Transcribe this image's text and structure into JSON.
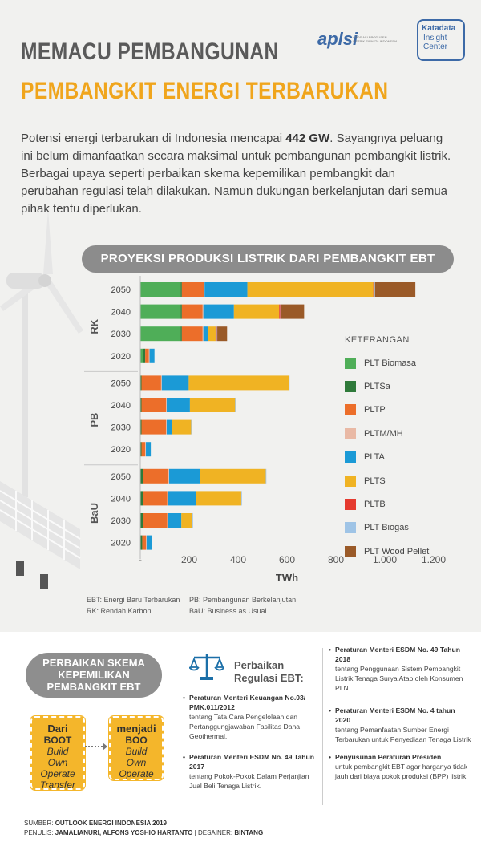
{
  "header": {
    "title_line1": "MEMACU PEMBANGUNAN",
    "title_line2": "PEMBANGKIT ENERGI TERBARUKAN",
    "logo_aplsi": "aplsi",
    "logo_aplsi_small": "ASOSIASI PRODUSEN LISTRIK SWASTA INDONESIA",
    "logo_kd_line1": "Katadata",
    "logo_kd_line2": "Insight",
    "logo_kd_line3": "Center"
  },
  "intro": {
    "part1": "Potensi energi terbarukan di Indonesia mencapai ",
    "bold": "442 GW",
    "part2": ". Sayangnya peluang ini belum dimanfaatkan secara maksimal untuk pembangunan pembangkit listrik. Berbagai upaya seperti perbaikan skema kepemilikan pembangkit dan perubahan regulasi telah dilakukan. Namun dukungan berkelanjutan dari semua pihak tentu diperlukan."
  },
  "chart_data": {
    "type": "bar",
    "orientation": "horizontal",
    "stacked": true,
    "title": "PROYEKSI PRODUKSI LISTRIK DARI PEMBANGKIT EBT",
    "xlabel": "TWh",
    "xlim": [
      0,
      1200
    ],
    "xticks": [
      "-",
      "200",
      "400",
      "600",
      "800",
      "1.000",
      "1.200"
    ],
    "legend_title": "KETERANGAN",
    "legend_position": "right",
    "groups": [
      {
        "name": "RK",
        "categories": [
          "2050",
          "2040",
          "2030",
          "2020"
        ]
      },
      {
        "name": "PB",
        "categories": [
          "2050",
          "2040",
          "2030",
          "2020"
        ]
      },
      {
        "name": "BaU",
        "categories": [
          "2050",
          "2040",
          "2030",
          "2020"
        ]
      }
    ],
    "series": [
      {
        "name": "PLT Biomasa",
        "color": "#4fae58",
        "values": [
          [
            165,
            165,
            165,
            12
          ],
          [
            0,
            0,
            0,
            0
          ],
          [
            0,
            0,
            0,
            0
          ]
        ]
      },
      {
        "name": "PLTSa",
        "color": "#2f7a3a",
        "values": [
          [
            5,
            5,
            5,
            8
          ],
          [
            5,
            5,
            5,
            5
          ],
          [
            10,
            10,
            10,
            8
          ]
        ]
      },
      {
        "name": "PLTP",
        "color": "#ec6e2a",
        "values": [
          [
            90,
            85,
            85,
            15
          ],
          [
            80,
            100,
            100,
            15
          ],
          [
            105,
            100,
            100,
            15
          ]
        ]
      },
      {
        "name": "PLTM/MH",
        "color": "#e9b9a5",
        "values": [
          [
            3,
            3,
            3,
            3
          ],
          [
            3,
            3,
            3,
            3
          ],
          [
            3,
            3,
            3,
            3
          ]
        ]
      },
      {
        "name": "PLTA",
        "color": "#1b9ad6",
        "values": [
          [
            175,
            125,
            20,
            20
          ],
          [
            110,
            95,
            20,
            20
          ],
          [
            125,
            115,
            55,
            20
          ]
        ]
      },
      {
        "name": "PLTS",
        "color": "#f0b323",
        "values": [
          [
            515,
            185,
            30,
            0
          ],
          [
            410,
            185,
            80,
            0
          ],
          [
            270,
            185,
            45,
            0
          ]
        ]
      },
      {
        "name": "PLTB",
        "color": "#e53a2f",
        "values": [
          [
            5,
            5,
            5,
            0
          ],
          [
            0,
            0,
            0,
            0
          ],
          [
            0,
            0,
            0,
            0
          ]
        ]
      },
      {
        "name": "PLT Biogas",
        "color": "#9fc4e6",
        "values": [
          [
            2,
            2,
            2,
            0
          ],
          [
            2,
            2,
            2,
            0
          ],
          [
            2,
            2,
            2,
            0
          ]
        ]
      },
      {
        "name": "PLT Wood Pellet",
        "color": "#9a5a28",
        "values": [
          [
            165,
            95,
            40,
            0
          ],
          [
            0,
            0,
            0,
            0
          ],
          [
            0,
            0,
            0,
            0
          ]
        ]
      }
    ]
  },
  "notes": [
    {
      "left": "EBT: Energi Baru Terbarukan",
      "right": "PB: Pembangunan Berkelanjutan"
    },
    {
      "left": "RK: Rendah Karbon",
      "right": "BaU: Business as Usual"
    }
  ],
  "scheme": {
    "title_line1": "PERBAIKAN SKEMA",
    "title_line2": "KEPEMILIKAN",
    "title_line3": "PEMBANGKIT EBT",
    "from_head": "Dari",
    "from_lines": [
      "BOOT",
      "Build",
      "Own",
      "Operate",
      "Transfer"
    ],
    "to_head": "menjadi",
    "to_lines": [
      "BOO",
      "Build",
      "Own",
      "Operate"
    ]
  },
  "regulations": {
    "title_line1": "Perbaikan",
    "title_line2": "Regulasi EBT:",
    "items": [
      {
        "head": "Peraturan Menteri Keuangan No.03/ PMK.011/2012",
        "body": "tentang Tata Cara Pengelolaan dan Pertanggungjawaban Fasilitas Dana Geothermal."
      },
      {
        "head": "Peraturan Menteri ESDM No. 49 Tahun 2017",
        "body": "tentang Pokok-Pokok Dalam Perjanjian Jual Beli Tenaga Listrik."
      },
      {
        "head": "Peraturan Menteri ESDM No. 49 Tahun 2018",
        "body": "tentang Penggunaan Sistem Pembangkit Listrik Tenaga Surya Atap oleh Konsumen PLN"
      },
      {
        "head": "Peraturan Menteri ESDM No. 4 tahun 2020",
        "body": "tentang Pemanfaatan Sumber Energi Terbarukan untuk Penyediaan Tenaga Listrik"
      },
      {
        "head": "Penyusunan Peraturan Presiden",
        "body": "untuk pembangkit EBT agar harganya tidak jauh dari biaya pokok produksi (BPP) listrik."
      }
    ]
  },
  "footer": {
    "source_label": "SUMBER:",
    "source": "OUTLOOK ENERGI INDONESIA 2019",
    "writer_label": "PENULIS:",
    "writers": "JAMALIANURI, ALFONS YOSHIO HARTANTO",
    "sep": "|",
    "designer_label": "DESAINER:",
    "designer": "BINTANG"
  }
}
